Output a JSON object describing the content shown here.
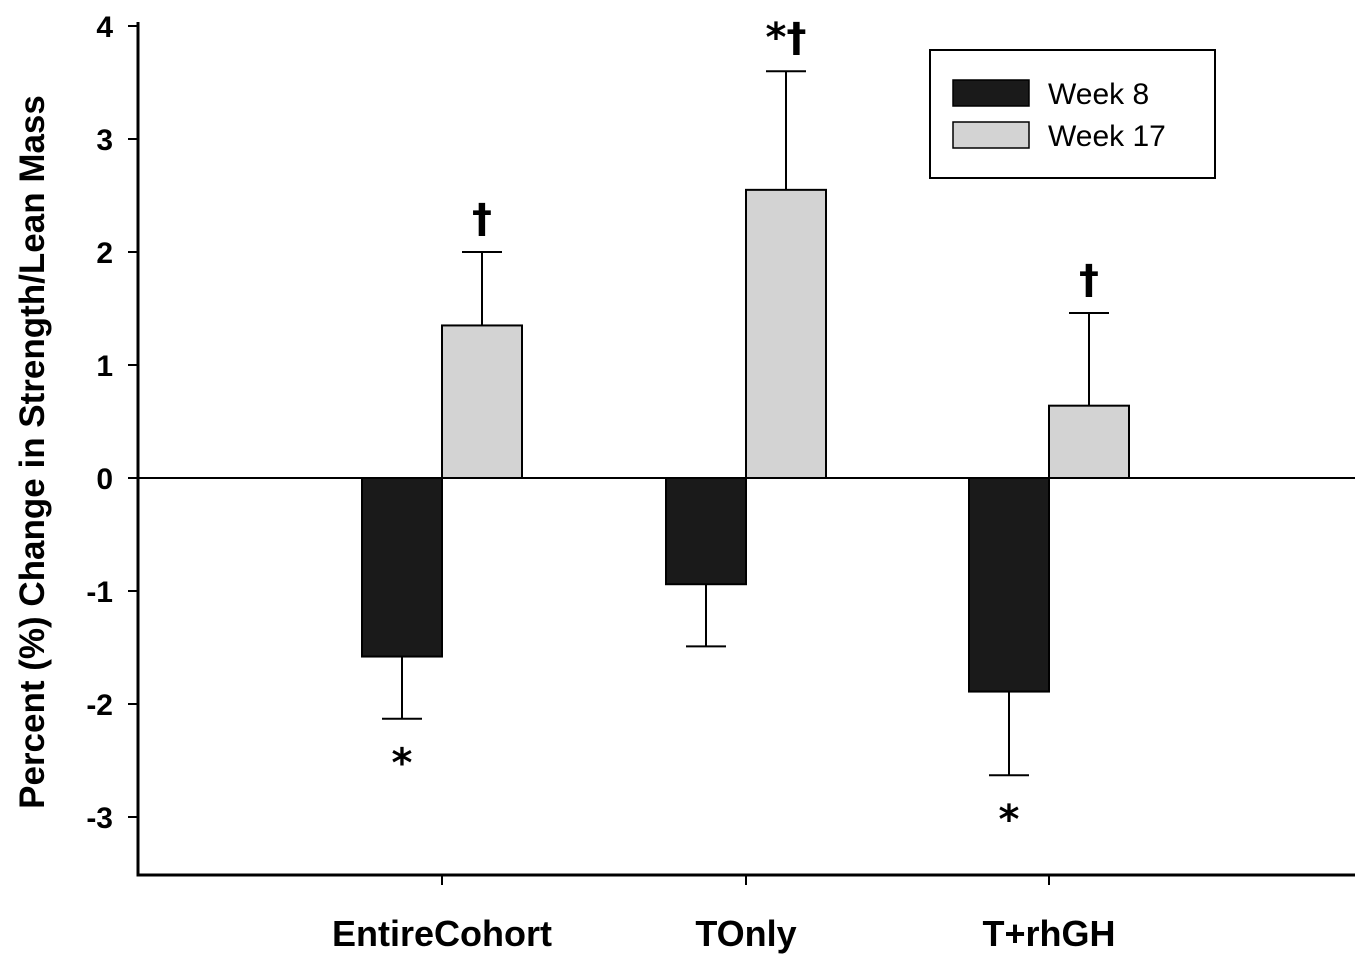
{
  "chart_data": {
    "type": "bar",
    "title": "",
    "xlabel": "",
    "ylabel": "Percent (%) Change in Strength/Lean Mass",
    "ylim": [
      -3.5,
      4
    ],
    "yticks": [
      4,
      3,
      2,
      1,
      0,
      -1,
      -2,
      -3
    ],
    "categories": [
      "EntireCohort",
      "TOnly",
      "T+rhGH"
    ],
    "series": [
      {
        "name": "Week 8",
        "color": "#1a1a1a",
        "values": [
          -1.58,
          -0.94,
          -1.89
        ],
        "errors": [
          0.55,
          0.55,
          0.74
        ],
        "annotations": [
          "*",
          "",
          "*"
        ]
      },
      {
        "name": "Week 17",
        "color": "#d3d3d3",
        "values": [
          1.35,
          2.55,
          0.64
        ],
        "errors": [
          0.65,
          1.05,
          0.82
        ],
        "annotations": [
          "†",
          "*†",
          "†"
        ]
      }
    ],
    "legend": {
      "position": "top-right"
    },
    "grid": false
  }
}
